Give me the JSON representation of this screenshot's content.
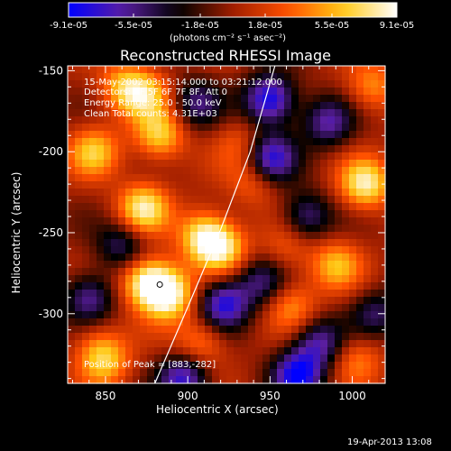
{
  "chart_data": {
    "type": "heatmap",
    "title": "Reconstructed RHESSI Image",
    "xlabel": "Heliocentric X (arcsec)",
    "ylabel": "Heliocentric Y (arcsec)",
    "xlim": [
      827,
      1020
    ],
    "ylim": [
      -343,
      -147
    ],
    "x_ticks": [
      850,
      900,
      950,
      1000
    ],
    "y_ticks": [
      -150,
      -200,
      -250,
      -300
    ],
    "x_tick_labels": [
      "850",
      "900",
      "950",
      "1000"
    ],
    "y_tick_labels": [
      "-150",
      "-200",
      "-250",
      "-300"
    ],
    "colorbar": {
      "min": -9.1e-05,
      "max": 9.1e-05,
      "ticks": [
        -9.1e-05,
        -5.5e-05,
        -1.8e-05,
        1.8e-05,
        5.5e-05,
        9.1e-05
      ],
      "tick_labels": [
        "-9.1e-05",
        "-5.5e-05",
        "-1.8e-05",
        "1.8e-05",
        "5.5e-05",
        "9.1e-05"
      ],
      "units": "(photons cm⁻² s⁻¹ asec⁻²)",
      "colormap": [
        "#0000ff",
        "#5a1ea0",
        "#000000",
        "#a01e00",
        "#ff5000",
        "#ffc814",
        "#ffffff"
      ]
    },
    "annotations": [
      "15-May-2002 03:15:14.000 to 03:21:12.000",
      "Detectors: 4F 5F 6F 7F 8F, Att 0",
      "Energy Range: 25.0 - 50.0 keV",
      "Clean    Total counts: 4.31E+03"
    ],
    "peak_label": "Position of Peak = [883,-282]",
    "peak_position": [
      883,
      -282
    ],
    "limb_curve": [
      [
        880,
        -343
      ],
      [
        900,
        -296
      ],
      [
        920,
        -248
      ],
      [
        938,
        -200
      ],
      [
        953,
        -147
      ]
    ],
    "sources": [
      {
        "x": 875,
        "y": -280,
        "value": 8.5e-05
      },
      {
        "x": 888,
        "y": -288,
        "value": 9.1e-05
      },
      {
        "x": 873,
        "y": -235,
        "value": 7.8e-05
      },
      {
        "x": 910,
        "y": -252,
        "value": 7.5e-05
      },
      {
        "x": 921,
        "y": -260,
        "value": 6.5e-05
      },
      {
        "x": 843,
        "y": -200,
        "value": 6e-05
      },
      {
        "x": 862,
        "y": -160,
        "value": 5.5e-05
      },
      {
        "x": 883,
        "y": -190,
        "value": 6.5e-05
      },
      {
        "x": 875,
        "y": -165,
        "value": 5e-05
      },
      {
        "x": 850,
        "y": -330,
        "value": 5e-05
      },
      {
        "x": 908,
        "y": -318,
        "value": 4.5e-05
      },
      {
        "x": 1008,
        "y": -220,
        "value": 8e-05
      },
      {
        "x": 990,
        "y": -270,
        "value": 5.5e-05
      },
      {
        "x": 1012,
        "y": -160,
        "value": 4.5e-05
      },
      {
        "x": 1003,
        "y": -328,
        "value": 4e-05
      },
      {
        "x": 963,
        "y": -295,
        "value": 4.5e-05
      },
      {
        "x": 940,
        "y": -218,
        "value": 3.5e-05
      },
      {
        "x": 932,
        "y": -195,
        "value": 3e-05
      },
      {
        "x": 960,
        "y": -260,
        "value": 3e-05
      },
      {
        "x": 950,
        "y": -168,
        "value": -9e-05
      },
      {
        "x": 922,
        "y": -294,
        "value": -8e-05
      },
      {
        "x": 950,
        "y": -204,
        "value": -8e-05
      },
      {
        "x": 967,
        "y": -338,
        "value": -8.5e-05
      },
      {
        "x": 898,
        "y": -340,
        "value": -7.5e-05
      },
      {
        "x": 840,
        "y": -290,
        "value": -6e-05
      },
      {
        "x": 972,
        "y": -240,
        "value": -5.5e-05
      },
      {
        "x": 980,
        "y": -318,
        "value": -6e-05
      },
      {
        "x": 860,
        "y": -258,
        "value": -5e-05
      },
      {
        "x": 945,
        "y": -280,
        "value": -5e-05
      },
      {
        "x": 985,
        "y": -182,
        "value": -6e-05
      },
      {
        "x": 905,
        "y": -170,
        "value": -5e-05
      },
      {
        "x": 1015,
        "y": -300,
        "value": -4.5e-05
      },
      {
        "x": 845,
        "y": -320,
        "value": 3e-05
      }
    ]
  },
  "footer": {
    "date": "19-Apr-2013 13:08"
  }
}
